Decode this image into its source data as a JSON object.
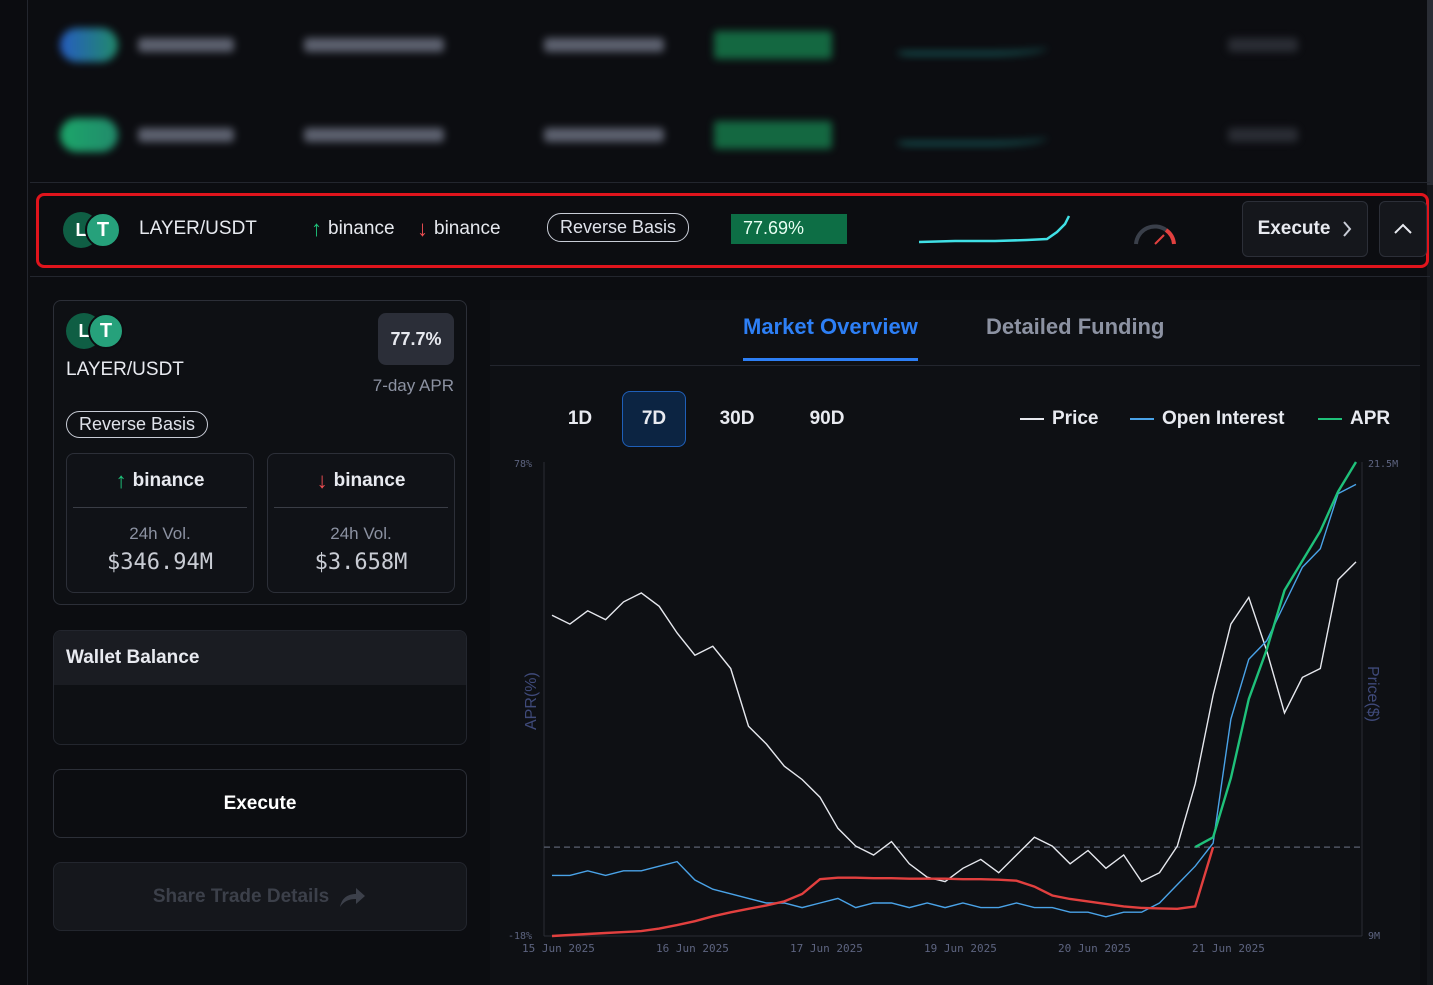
{
  "row": {
    "pair": "LAYER/USDT",
    "coin_a_letter": "L",
    "coin_b_letter": "T",
    "long_exchange": "binance",
    "short_exchange": "binance",
    "strategy": "Reverse Basis",
    "apr": "77.69%",
    "execute_label": "Execute"
  },
  "card": {
    "pair": "LAYER/USDT",
    "apr_value": "77.7%",
    "apr_caption": "7-day APR",
    "strategy": "Reverse Basis",
    "exchanges": [
      {
        "name": "binance",
        "direction": "up",
        "vol_label": "24h Vol.",
        "vol_value": "$346.94M"
      },
      {
        "name": "binance",
        "direction": "down",
        "vol_label": "24h Vol.",
        "vol_value": "$3.658M"
      }
    ]
  },
  "wallet": {
    "title": "Wallet Balance"
  },
  "actions": {
    "execute": "Execute",
    "share": "Share Trade Details"
  },
  "tabs": [
    {
      "label": "Market Overview",
      "active": true
    },
    {
      "label": "Detailed Funding",
      "active": false
    }
  ],
  "ranges": [
    {
      "label": "1D",
      "active": false
    },
    {
      "label": "7D",
      "active": true
    },
    {
      "label": "30D",
      "active": false
    },
    {
      "label": "90D",
      "active": false
    }
  ],
  "legend": [
    {
      "label": "Price",
      "color": "#e6e8ee"
    },
    {
      "label": "Open Interest",
      "color": "#4aa3e8"
    },
    {
      "label": "APR",
      "color": "#1fc17a"
    }
  ],
  "colors": {
    "accent": "#2d7ff5",
    "up": "#1fc17a",
    "down": "#ef4e52",
    "apr_negative": "#e2403f"
  },
  "chart_data": {
    "type": "line",
    "y_left_label": "APR(%)",
    "y_right_label": "Price($)",
    "y_left_ticks": [
      "78%",
      "-18%"
    ],
    "y_right_ticks": [
      "21.5M",
      "9M"
    ],
    "x_ticks": [
      "15 Jun 2025",
      "16 Jun 2025",
      "17 Jun 2025",
      "19 Jun 2025",
      "20 Jun 2025",
      "21 Jun 2025"
    ],
    "ylim_left": [
      -18,
      78
    ],
    "series": [
      {
        "name": "Price",
        "values": [
          0.7,
          0.68,
          0.71,
          0.69,
          0.73,
          0.75,
          0.72,
          0.66,
          0.61,
          0.63,
          0.58,
          0.45,
          0.41,
          0.36,
          0.33,
          0.29,
          0.22,
          0.18,
          0.16,
          0.19,
          0.14,
          0.11,
          0.1,
          0.13,
          0.15,
          0.12,
          0.16,
          0.2,
          0.18,
          0.14,
          0.17,
          0.13,
          0.16,
          0.1,
          0.12,
          0.18,
          0.32,
          0.52,
          0.68,
          0.74,
          0.62,
          0.48,
          0.56,
          0.58,
          0.78,
          0.82
        ]
      },
      {
        "name": "Open Interest",
        "values": [
          0.11,
          0.11,
          0.12,
          0.11,
          0.12,
          0.12,
          0.13,
          0.14,
          0.1,
          0.08,
          0.07,
          0.06,
          0.05,
          0.05,
          0.04,
          0.05,
          0.06,
          0.04,
          0.05,
          0.05,
          0.04,
          0.05,
          0.04,
          0.05,
          0.04,
          0.04,
          0.05,
          0.04,
          0.04,
          0.03,
          0.03,
          0.02,
          0.03,
          0.03,
          0.05,
          0.09,
          0.13,
          0.18,
          0.45,
          0.58,
          0.62,
          0.7,
          0.78,
          0.82,
          0.94,
          0.96
        ]
      },
      {
        "name": "APR",
        "values": [
          -18,
          -17.8,
          -17.6,
          -17.4,
          -17.2,
          -17,
          -16.5,
          -15.8,
          -15,
          -14,
          -13.2,
          -12.5,
          -11.8,
          -11,
          -9.5,
          -6.5,
          -6.2,
          -6.2,
          -6.3,
          -6.3,
          -6.4,
          -6.4,
          -6.4,
          -6.5,
          -6.5,
          -6.6,
          -6.8,
          -8,
          -9.8,
          -10.5,
          -11,
          -11.5,
          -12,
          -12.3,
          -12.4,
          -12.5,
          -12,
          2,
          14,
          30,
          40,
          52,
          58,
          64,
          72,
          78
        ]
      }
    ]
  }
}
